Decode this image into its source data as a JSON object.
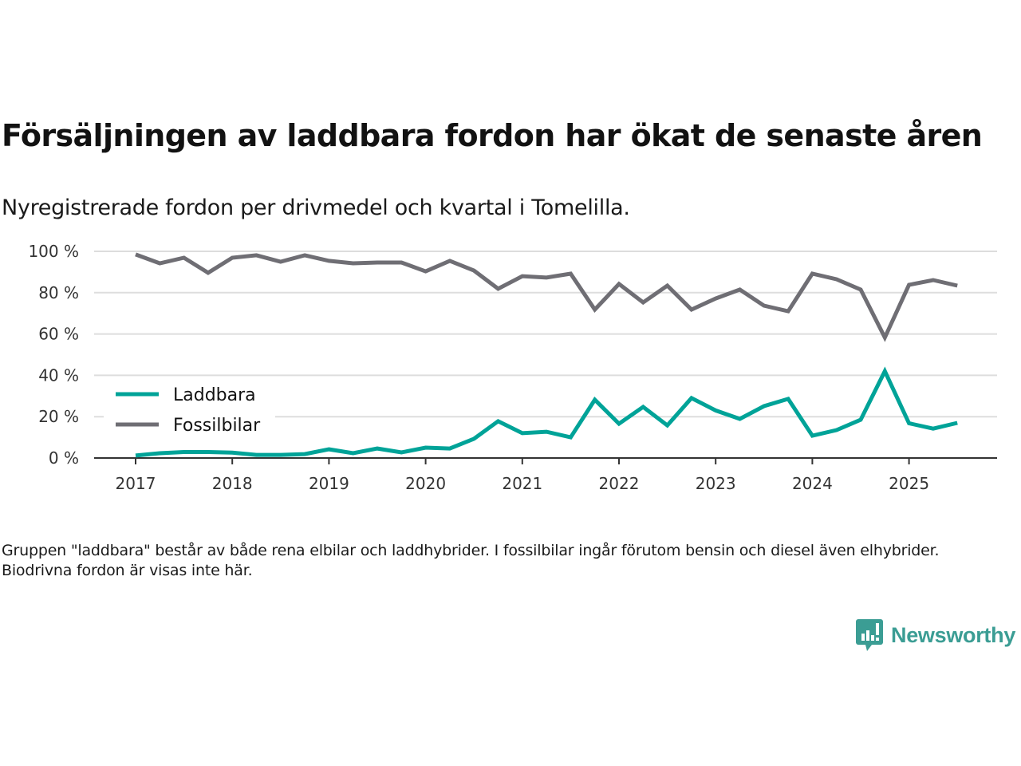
{
  "header": {
    "title": "Försäljningen av laddbara fordon har ökat de senaste åren",
    "subtitle": "Nyregistrerade fordon per drivmedel och kvartal i Tomelilla."
  },
  "footer": {
    "note": "Gruppen \"laddbara\" består av både rena elbilar och laddhybrider. I fossilbilar ingår förutom bensin och diesel även elhybrider. Biodrivna fordon är visas inte här.",
    "brand": "Newsworthy",
    "brand_icon": "newsworthy-logo-icon"
  },
  "colors": {
    "laddbara": "#00a398",
    "fossilbilar": "#6f6e74",
    "grid": "#dddddd",
    "axis": "#333333",
    "brand": "#3b9d94"
  },
  "chart_data": {
    "type": "line",
    "title": "Försäljningen av laddbara fordon har ökat de senaste åren",
    "subtitle": "Nyregistrerade fordon per drivmedel och kvartal i Tomelilla.",
    "xlabel": "",
    "ylabel": "",
    "x": [
      "2017Q1",
      "2017Q2",
      "2017Q3",
      "2017Q4",
      "2018Q1",
      "2018Q2",
      "2018Q3",
      "2018Q4",
      "2019Q1",
      "2019Q2",
      "2019Q3",
      "2019Q4",
      "2020Q1",
      "2020Q2",
      "2020Q3",
      "2020Q4",
      "2021Q1",
      "2021Q2",
      "2021Q3",
      "2021Q4",
      "2022Q1",
      "2022Q2",
      "2022Q3",
      "2022Q4",
      "2023Q1",
      "2023Q2",
      "2023Q3",
      "2023Q4",
      "2024Q1",
      "2024Q2",
      "2024Q3",
      "2024Q4",
      "2025Q1",
      "2025Q2",
      "2025Q3"
    ],
    "x_tick_labels": [
      "2017",
      "2018",
      "2019",
      "2020",
      "2021",
      "2022",
      "2023",
      "2024",
      "2025"
    ],
    "y_tick_labels": [
      "0 %",
      "20 %",
      "40 %",
      "60 %",
      "80 %",
      "100 %"
    ],
    "y_ticks": [
      0,
      20,
      40,
      60,
      80,
      100
    ],
    "ylim": [
      0,
      100
    ],
    "grid": true,
    "legend_position": "middle-left",
    "series": [
      {
        "name": "Laddbara",
        "values": [
          1.2,
          2.3,
          2.9,
          2.9,
          2.6,
          1.5,
          1.5,
          1.9,
          4.2,
          2.3,
          4.6,
          2.7,
          5.0,
          4.6,
          9.3,
          17.8,
          12.0,
          12.7,
          10.0,
          28.2,
          16.6,
          24.7,
          15.8,
          29.0,
          23.0,
          18.9,
          25.1,
          28.6,
          10.8,
          13.5,
          18.5,
          42.0,
          16.8,
          14.2,
          17.0
        ]
      },
      {
        "name": "Fossilbilar",
        "values": [
          98.5,
          94.2,
          96.9,
          89.6,
          96.9,
          98.1,
          95.0,
          98.1,
          95.4,
          94.2,
          94.6,
          94.6,
          90.3,
          95.4,
          90.7,
          81.9,
          88.0,
          87.3,
          89.2,
          71.8,
          84.2,
          75.3,
          83.4,
          71.8,
          77.2,
          81.5,
          73.7,
          71.0,
          89.2,
          86.5,
          81.5,
          58.3,
          83.8,
          86.1,
          83.4
        ]
      }
    ]
  }
}
